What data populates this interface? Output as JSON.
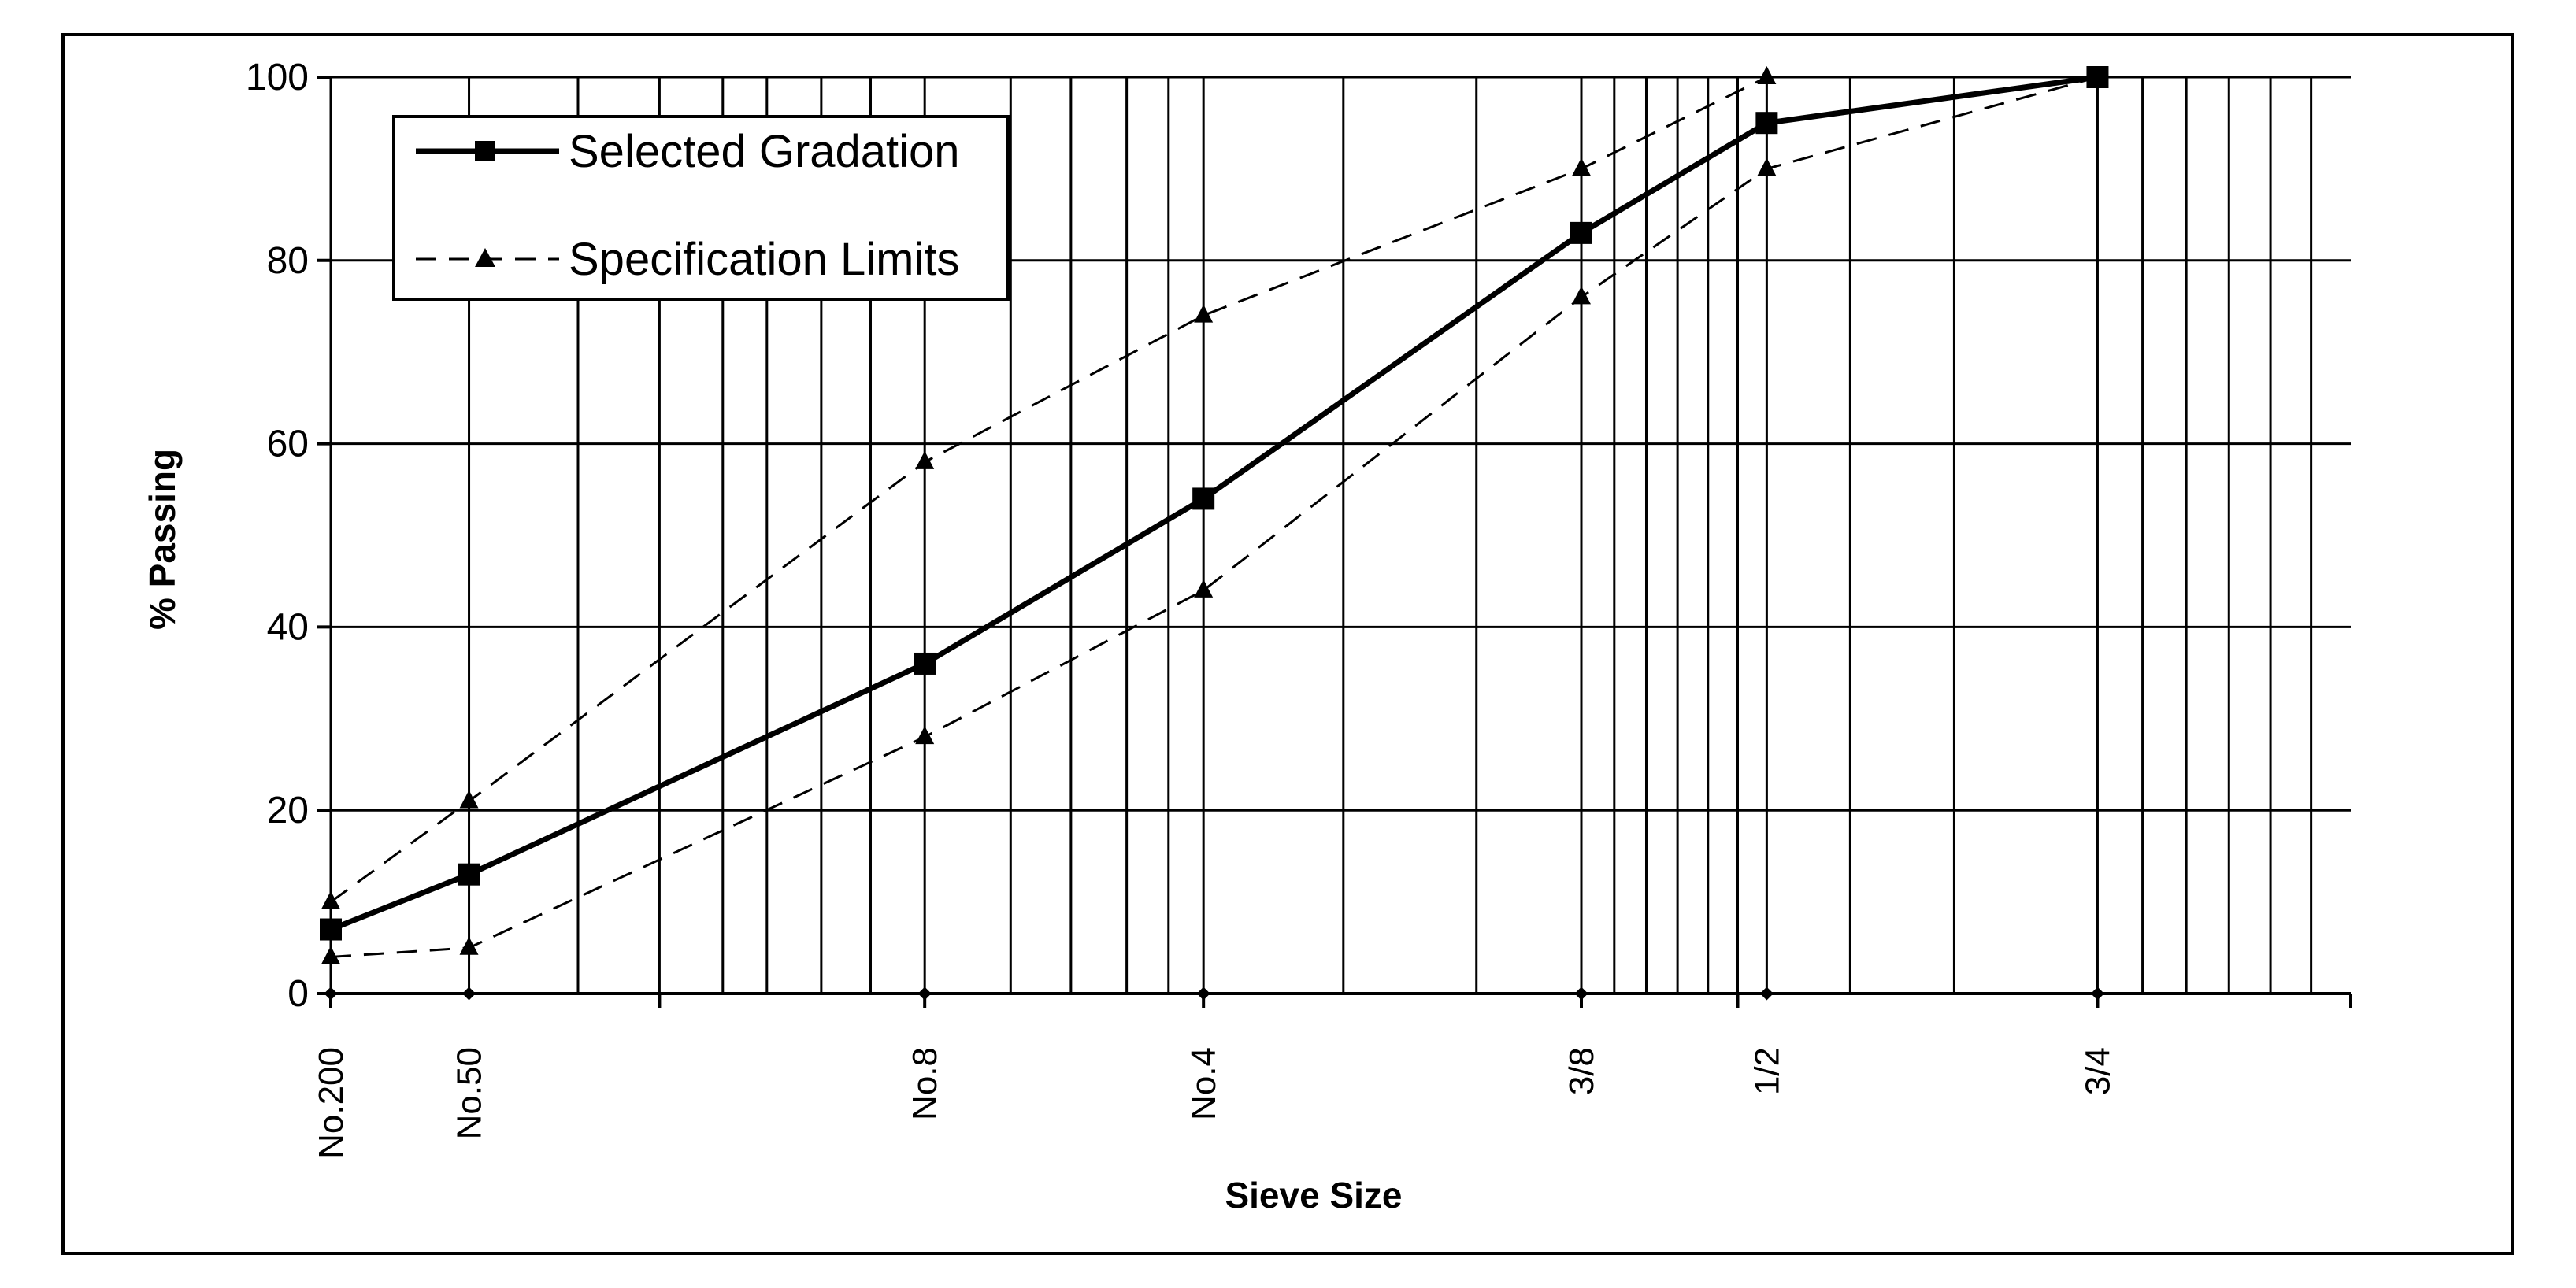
{
  "chart_data": {
    "type": "line",
    "title": "",
    "xlabel": "Sieve Size",
    "ylabel": "% Passing",
    "x_scale": "log (0.45 power gradation)",
    "ylim": [
      0,
      100
    ],
    "yticks": [
      0,
      20,
      40,
      60,
      80,
      100
    ],
    "grid": true,
    "legend_position": "top-left",
    "categories": [
      "No.200",
      "No.50",
      "No.8",
      "No.4",
      "3/8",
      "1/2",
      "3/4"
    ],
    "sieve_openings_mm": [
      0.075,
      0.3,
      2.36,
      4.75,
      9.5,
      12.5,
      19.0
    ],
    "series": [
      {
        "name": "Selected Gradation",
        "style": "solid",
        "marker": "square",
        "values": [
          7,
          13,
          36,
          54,
          83,
          95,
          100
        ]
      },
      {
        "name": "Specification Limits",
        "style": "dashed",
        "marker": "triangle",
        "upper_x_mm": [
          0.075,
          0.3,
          2.36,
          4.75,
          9.5,
          12.5,
          19.0
        ],
        "upper_values": [
          10,
          21,
          58,
          74,
          90,
          100,
          100
        ],
        "lower_x_mm": [
          0.075,
          0.3,
          2.36,
          4.75,
          9.5,
          12.5,
          19.0
        ],
        "lower_values": [
          4,
          5,
          28,
          44,
          76,
          90,
          100
        ]
      }
    ],
    "x_gridlines_mm": [
      0.075,
      0.3,
      0.6,
      0.9,
      1.18,
      1.4,
      1.7,
      2.0,
      2.36,
      3.0,
      3.5,
      4.0,
      4.4,
      4.75,
      6.3,
      8.0,
      9.5,
      10.0,
      10.5,
      11.0,
      11.5,
      12.0,
      12.5,
      14.0,
      16.0,
      19.0,
      20.0,
      21.0,
      22.0,
      23.0,
      24.0
    ]
  },
  "legend": {
    "selected_label": "Selected Gradation",
    "spec_label": "Specification Limits"
  },
  "axes": {
    "x_title": "Sieve Size",
    "y_title": "% Passing"
  }
}
